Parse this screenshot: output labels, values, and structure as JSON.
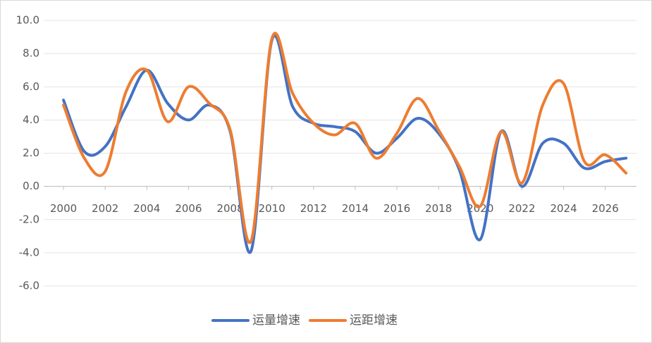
{
  "chart_data": {
    "type": "line",
    "x": [
      2000,
      2001,
      2002,
      2003,
      2004,
      2005,
      2006,
      2007,
      2008,
      2009,
      2010,
      2011,
      2012,
      2013,
      2014,
      2015,
      2016,
      2017,
      2018,
      2019,
      2020,
      2021,
      2022,
      2023,
      2024,
      2025,
      2026,
      2027
    ],
    "series": [
      {
        "name": "运量增速",
        "color": "#4472c4",
        "values": [
          5.2,
          2.1,
          2.4,
          4.8,
          7.0,
          5.0,
          4.0,
          4.9,
          3.3,
          -3.9,
          8.8,
          4.8,
          3.8,
          3.6,
          3.3,
          2.0,
          2.9,
          4.1,
          3.2,
          1.0,
          -3.2,
          3.3,
          0.0,
          2.6,
          2.6,
          1.1,
          1.5,
          1.7
        ]
      },
      {
        "name": "运距增速",
        "color": "#ed7d31",
        "values": [
          4.9,
          1.7,
          0.9,
          5.7,
          7.0,
          3.9,
          6.0,
          5.0,
          3.4,
          -3.3,
          8.9,
          5.6,
          3.8,
          3.1,
          3.8,
          1.7,
          3.2,
          5.3,
          3.4,
          1.2,
          -1.2,
          3.3,
          0.2,
          4.9,
          6.2,
          1.5,
          1.9,
          0.8
        ]
      }
    ],
    "xlim": [
      1999.05,
      2027.5
    ],
    "xticks": [
      2000,
      2002,
      2004,
      2006,
      2008,
      2010,
      2012,
      2014,
      2016,
      2018,
      2020,
      2022,
      2024,
      2026
    ],
    "ylim": [
      -6,
      10
    ],
    "yticks": [
      {
        "value": -6,
        "label": "-6.0"
      },
      {
        "value": -4,
        "label": "-4.0"
      },
      {
        "value": -2,
        "label": "-2.0"
      },
      {
        "value": 0,
        "label": "0.0"
      },
      {
        "value": 2,
        "label": "2.0"
      },
      {
        "value": 4,
        "label": "4.0"
      },
      {
        "value": 6,
        "label": "6.0"
      },
      {
        "value": 8,
        "label": "8.0"
      },
      {
        "value": 10,
        "label": "10.0"
      }
    ],
    "grid": true,
    "legend": "bottom"
  }
}
